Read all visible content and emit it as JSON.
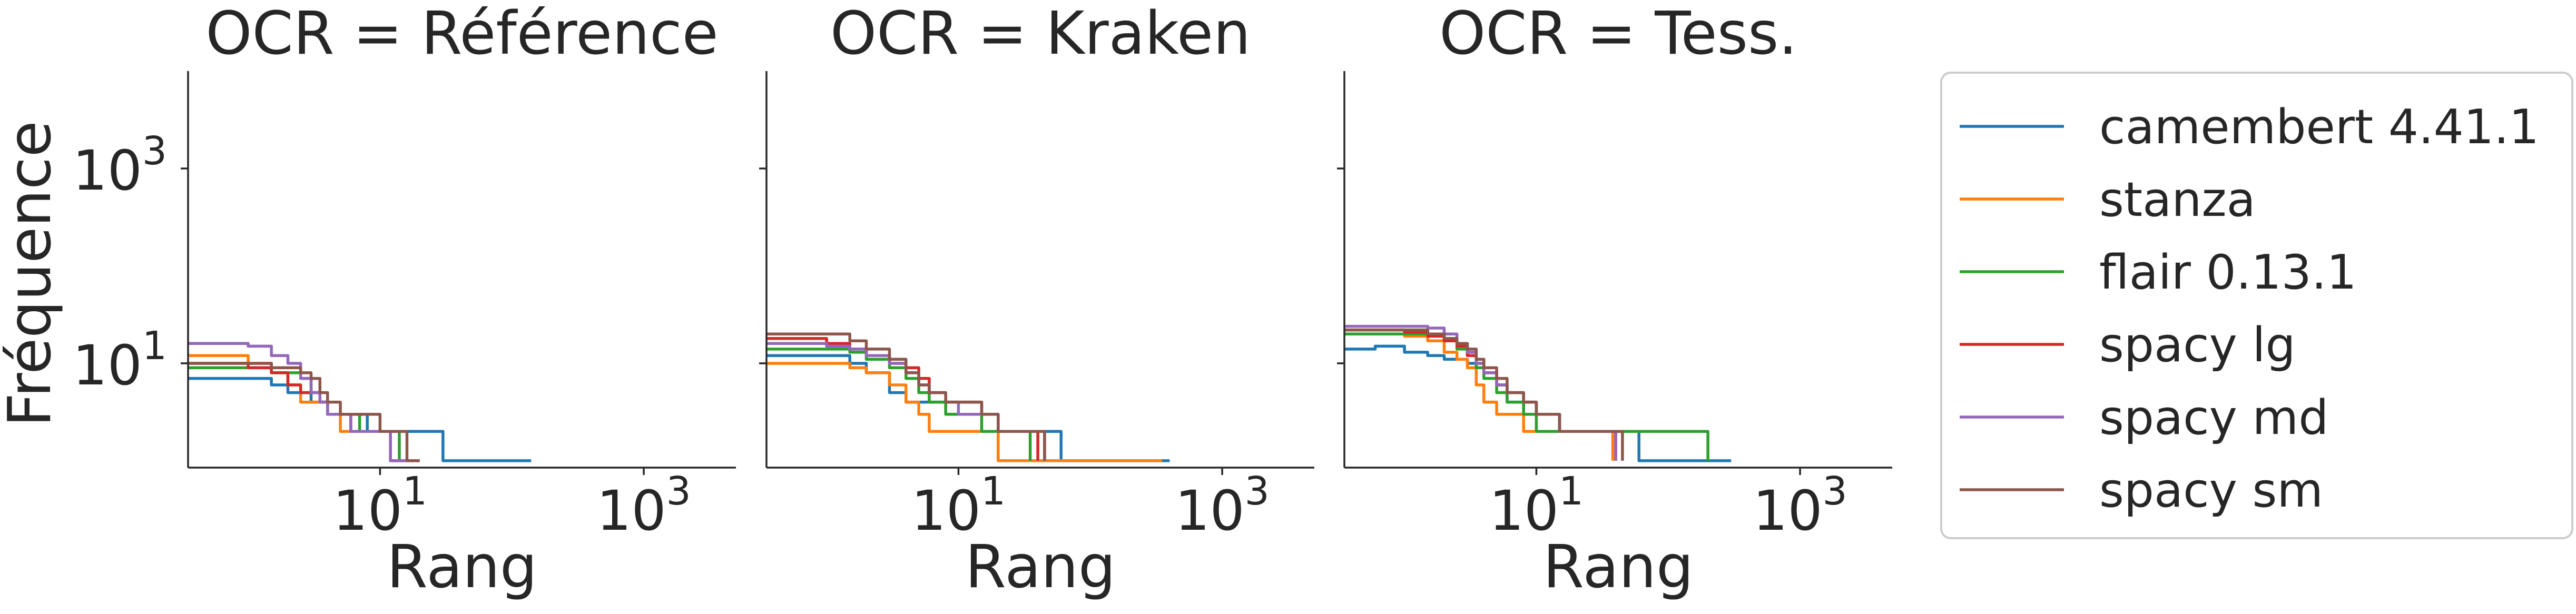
{
  "figure": {
    "ylabel": "Fréquence",
    "xlabel": "Rang",
    "xscale": "log",
    "yscale": "log",
    "xlim": [
      0.35,
      5000
    ],
    "ylim": [
      0.85,
      10000
    ],
    "x_ticks": [
      {
        "base": "10",
        "exp": "1",
        "value": 10
      },
      {
        "base": "10",
        "exp": "3",
        "value": 1000
      }
    ],
    "y_ticks": [
      {
        "base": "10",
        "exp": "1",
        "value": 10
      },
      {
        "base": "10",
        "exp": "3",
        "value": 1000
      }
    ],
    "grid": false,
    "legend_position": "right"
  },
  "legend": [
    {
      "name": "camembert 4.41.1",
      "color": "#1f77b4"
    },
    {
      "name": "stanza",
      "color": "#ff7f0e"
    },
    {
      "name": "flair 0.13.1",
      "color": "#2ca02c"
    },
    {
      "name": "spacy lg",
      "color": "#d62728"
    },
    {
      "name": "spacy md",
      "color": "#9467bd"
    },
    {
      "name": "spacy sm",
      "color": "#8c564b"
    }
  ],
  "chart_data": [
    {
      "type": "line",
      "title": "OCR = Référence",
      "xlabel": "Rang",
      "ylabel": "Fréquence",
      "series": [
        {
          "name": "camembert 4.41.1",
          "color": "#1f77b4",
          "x": [
            0.35,
            1,
            1.5,
            2,
            2.5,
            3,
            4,
            5,
            6,
            7,
            8,
            9,
            10,
            12,
            15,
            20,
            25,
            30,
            140
          ],
          "y": [
            7,
            7,
            6,
            5,
            5,
            4,
            3,
            3,
            3,
            3,
            2,
            2,
            2,
            2,
            2,
            2,
            2,
            1,
            1
          ]
        },
        {
          "name": "stanza",
          "color": "#ff7f0e",
          "x": [
            0.35,
            1,
            1.5,
            2,
            2.5,
            3,
            4,
            5,
            6,
            7,
            8,
            9,
            10,
            12,
            15
          ],
          "y": [
            12,
            10,
            8,
            6,
            4,
            4,
            3,
            2,
            2,
            2,
            2,
            2,
            2,
            1,
            1
          ]
        },
        {
          "name": "flair 0.13.1",
          "color": "#2ca02c",
          "x": [
            0.35,
            1,
            1.5,
            2,
            2.5,
            3,
            3.5,
            4,
            5,
            6,
            7,
            8,
            9,
            10,
            12,
            14,
            16
          ],
          "y": [
            9,
            9,
            8,
            8,
            7,
            5,
            4,
            3,
            3,
            3,
            2,
            2,
            2,
            2,
            2,
            1,
            1
          ]
        },
        {
          "name": "spacy lg",
          "color": "#d62728",
          "x": [
            0.35,
            1,
            1.5,
            2,
            2.5,
            3,
            3.5,
            4,
            5,
            6,
            7,
            8,
            9,
            10,
            12,
            15
          ],
          "y": [
            10,
            9,
            8,
            6,
            5,
            5,
            4,
            3,
            3,
            2,
            2,
            2,
            2,
            2,
            1,
            1
          ]
        },
        {
          "name": "spacy md",
          "color": "#9467bd",
          "x": [
            0.35,
            1,
            1.5,
            2,
            2.5,
            3,
            3.5,
            4,
            5,
            6,
            7,
            8,
            9,
            10,
            12,
            14,
            20
          ],
          "y": [
            16,
            15,
            12,
            10,
            7,
            5,
            4,
            3,
            3,
            2,
            2,
            2,
            2,
            2,
            1,
            1,
            1
          ]
        },
        {
          "name": "spacy sm",
          "color": "#8c564b",
          "x": [
            0.35,
            1,
            1.5,
            2,
            2.5,
            3,
            3.5,
            4,
            5,
            6,
            7,
            8,
            9,
            10,
            12,
            14,
            16,
            20
          ],
          "y": [
            10,
            10,
            9,
            9,
            8,
            7,
            5,
            4,
            3,
            3,
            3,
            3,
            3,
            2,
            2,
            2,
            1,
            1
          ]
        }
      ]
    },
    {
      "type": "line",
      "title": "OCR = Kraken",
      "xlabel": "Rang",
      "ylabel": "Fréquence",
      "series": [
        {
          "name": "camembert 4.41.1",
          "color": "#1f77b4",
          "x": [
            0.35,
            1,
            1.5,
            2,
            3,
            4,
            6,
            8,
            10,
            15,
            20,
            30,
            50,
            60,
            400
          ],
          "y": [
            12,
            12,
            10,
            8,
            5,
            4,
            4,
            3,
            3,
            3,
            2,
            2,
            2,
            1,
            1
          ]
        },
        {
          "name": "stanza",
          "color": "#ff7f0e",
          "x": [
            0.35,
            1,
            1.5,
            2,
            3,
            4,
            5,
            6,
            8,
            10,
            15,
            20,
            25,
            350
          ],
          "y": [
            10,
            10,
            9,
            8,
            6,
            4,
            3,
            2,
            2,
            2,
            2,
            1,
            1,
            1
          ]
        },
        {
          "name": "flair 0.13.1",
          "color": "#2ca02c",
          "x": [
            0.35,
            1,
            1.5,
            2,
            3,
            4,
            5,
            6,
            8,
            10,
            15,
            20,
            30,
            35
          ],
          "y": [
            14,
            14,
            13,
            11,
            9,
            7,
            5,
            4,
            3,
            3,
            2,
            2,
            2,
            1
          ]
        },
        {
          "name": "spacy lg",
          "color": "#d62728",
          "x": [
            0.35,
            1,
            1.5,
            2,
            3,
            4,
            5,
            6,
            8,
            10,
            15,
            20,
            30,
            40
          ],
          "y": [
            18,
            16,
            14,
            12,
            10,
            9,
            7,
            5,
            4,
            4,
            3,
            2,
            2,
            1
          ]
        },
        {
          "name": "spacy md",
          "color": "#9467bd",
          "x": [
            0.35,
            1,
            1.5,
            2,
            3,
            4,
            5,
            6,
            8,
            10,
            15,
            20,
            30,
            45
          ],
          "y": [
            16,
            15,
            14,
            12,
            10,
            8,
            6,
            5,
            4,
            3,
            3,
            2,
            2,
            1
          ]
        },
        {
          "name": "spacy sm",
          "color": "#8c564b",
          "x": [
            0.35,
            1,
            1.5,
            2,
            3,
            4,
            5,
            6,
            8,
            10,
            15,
            20,
            25,
            45
          ],
          "y": [
            20,
            20,
            17,
            14,
            11,
            8,
            6,
            5,
            4,
            4,
            3,
            2,
            2,
            1
          ]
        }
      ]
    },
    {
      "type": "line",
      "title": "OCR = Tess.",
      "xlabel": "Rang",
      "ylabel": "Fréquence",
      "series": [
        {
          "name": "camembert 4.41.1",
          "color": "#1f77b4",
          "x": [
            0.35,
            0.6,
            1,
            1.5,
            2,
            3,
            4,
            5,
            6,
            8,
            10,
            15,
            20,
            30,
            40,
            60,
            300
          ],
          "y": [
            14,
            15,
            13,
            12,
            11,
            10,
            8,
            6,
            4,
            3,
            3,
            2,
            2,
            2,
            2,
            1,
            1
          ]
        },
        {
          "name": "stanza",
          "color": "#ff7f0e",
          "x": [
            0.35,
            1,
            1.5,
            2,
            2.5,
            3,
            3.5,
            4,
            5,
            6,
            8,
            10,
            15,
            20,
            30,
            38
          ],
          "y": [
            20,
            19,
            17,
            13,
            11,
            9,
            6,
            4,
            3,
            3,
            2,
            2,
            2,
            2,
            2,
            1
          ]
        },
        {
          "name": "flair 0.13.1",
          "color": "#2ca02c",
          "x": [
            0.35,
            1,
            1.5,
            2,
            2.5,
            3,
            3.5,
            4,
            5,
            6,
            8,
            10,
            12,
            15,
            20,
            200
          ],
          "y": [
            20,
            20,
            19,
            17,
            14,
            12,
            9,
            7,
            5,
            4,
            3,
            2,
            2,
            2,
            2,
            1
          ]
        },
        {
          "name": "spacy lg",
          "color": "#d62728",
          "x": [
            0.35,
            1,
            1.5,
            2,
            2.5,
            3,
            3.5,
            4,
            5,
            6,
            8,
            10,
            15,
            20,
            30,
            40
          ],
          "y": [
            22,
            21,
            19,
            17,
            15,
            12,
            10,
            8,
            6,
            5,
            4,
            3,
            2,
            2,
            2,
            1
          ]
        },
        {
          "name": "spacy md",
          "color": "#9467bd",
          "x": [
            0.35,
            1,
            1.5,
            2,
            2.5,
            3,
            3.5,
            4,
            5,
            6,
            8,
            10,
            15,
            20,
            30,
            40
          ],
          "y": [
            24,
            24,
            23,
            20,
            16,
            13,
            10,
            8,
            6,
            5,
            4,
            3,
            2,
            2,
            2,
            1
          ]
        },
        {
          "name": "spacy sm",
          "color": "#8c564b",
          "x": [
            0.35,
            1,
            1.5,
            2,
            2.5,
            3,
            3.5,
            4,
            5,
            6,
            8,
            10,
            15,
            20,
            30,
            45
          ],
          "y": [
            22,
            22,
            20,
            18,
            16,
            14,
            11,
            9,
            7,
            5,
            4,
            3,
            2,
            2,
            2,
            1
          ]
        }
      ]
    }
  ]
}
